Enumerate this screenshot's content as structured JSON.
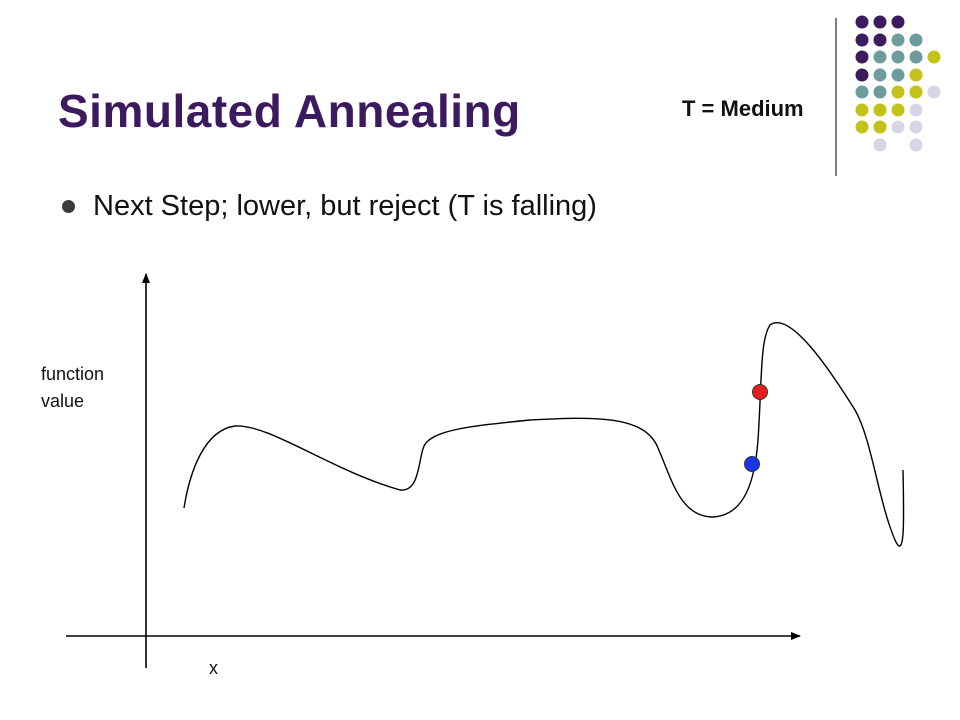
{
  "slide": {
    "title": "Simulated Annealing",
    "temperature_label": "T = Medium",
    "bullet": "Next Step; lower, but reject (T is falling)"
  },
  "plot": {
    "ylabel_line1": "function",
    "ylabel_line2": "value",
    "xlabel": "x",
    "current_point_color": "#e81c1c",
    "proposed_point_color": "#1a35e8",
    "curve_color": "#000000"
  },
  "theme": {
    "title_color": "#3b1a5e",
    "dot_colors": [
      "#3b1a5e",
      "#6e9b9b",
      "#c2c21a",
      "#d6d6e6"
    ]
  }
}
